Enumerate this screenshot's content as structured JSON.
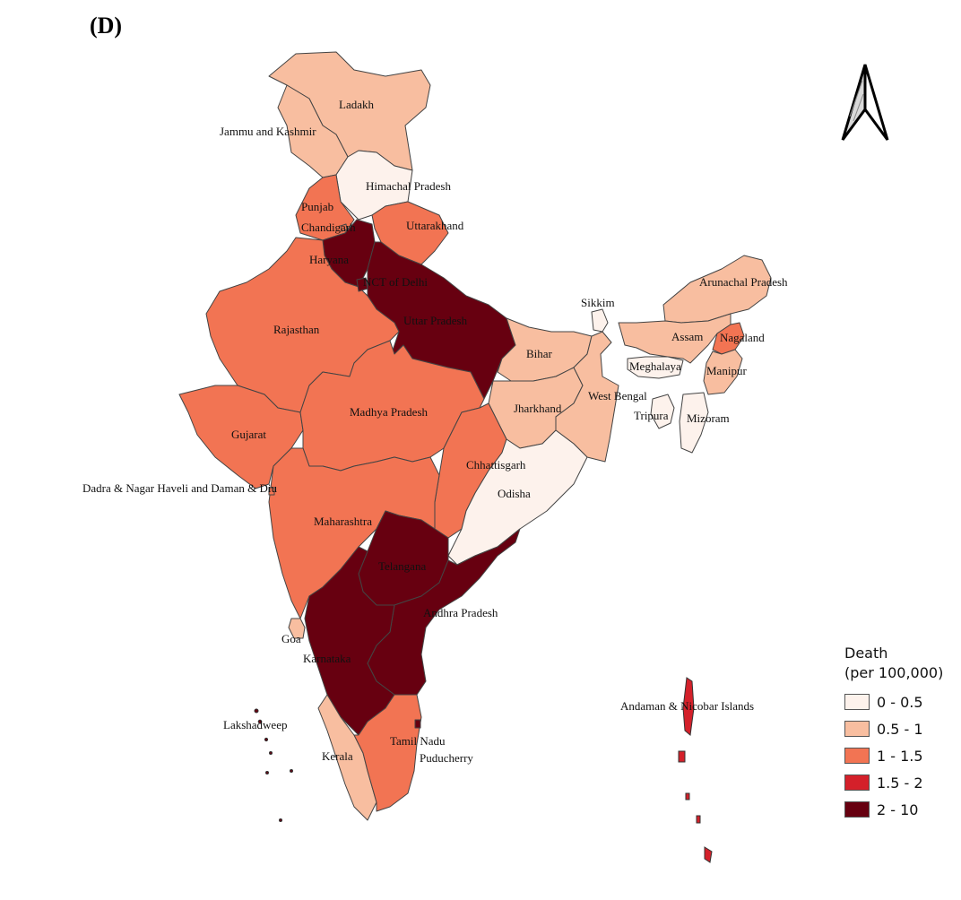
{
  "panel_label": "(D)",
  "colors": {
    "c0": "#fdf2ec",
    "c1": "#f8bea0",
    "c2": "#f27453",
    "c3": "#d4202a",
    "c4": "#670010",
    "border": "#444444"
  },
  "legend": {
    "title_line1": "Death",
    "title_line2": "(per 100,000)",
    "classes": [
      {
        "label": "0 - 0.5",
        "color": "#fdf2ec"
      },
      {
        "label": "0.5 - 1",
        "color": "#f8bea0"
      },
      {
        "label": "1 - 1.5",
        "color": "#f27453"
      },
      {
        "label": "1.5 - 2",
        "color": "#d4202a"
      },
      {
        "label": "2 - 10",
        "color": "#670010"
      }
    ]
  },
  "regions": {
    "ladakh": {
      "name": "Ladakh",
      "class": "0.5 - 1"
    },
    "jammu_kashmir": {
      "name": "Jammu and Kashmir",
      "class": "0.5 - 1"
    },
    "himachal": {
      "name": "Himachal Pradesh",
      "class": "0 - 0.5"
    },
    "punjab": {
      "name": "Punjab",
      "class": "1 - 1.5"
    },
    "chandigarh": {
      "name": "Chandigarh",
      "class": "1 - 1.5"
    },
    "uttarakhand": {
      "name": "Uttarakhand",
      "class": "1 - 1.5"
    },
    "haryana": {
      "name": "Haryana",
      "class": "2 - 10"
    },
    "delhi": {
      "name": "NCT of Delhi",
      "class": "2 - 10"
    },
    "uttar_pradesh": {
      "name": "Uttar Pradesh",
      "class": "2 - 10"
    },
    "rajasthan": {
      "name": "Rajasthan",
      "class": "1 - 1.5"
    },
    "gujarat": {
      "name": "Gujarat",
      "class": "1 - 1.5"
    },
    "dnh_dd": {
      "name": "Dadra & Nagar Haveli and Daman & Diu",
      "class": "1 - 1.5"
    },
    "madhya_pradesh": {
      "name": "Madhya Pradesh",
      "class": "1 - 1.5"
    },
    "bihar": {
      "name": "Bihar",
      "class": "0.5 - 1"
    },
    "jharkhand": {
      "name": "Jharkhand",
      "class": "0.5 - 1"
    },
    "west_bengal": {
      "name": "West Bengal",
      "class": "0.5 - 1"
    },
    "chhattisgarh": {
      "name": "Chhattisgarh",
      "class": "1 - 1.5"
    },
    "odisha": {
      "name": "Odisha",
      "class": "0 - 0.5"
    },
    "maharashtra": {
      "name": "Maharashtra",
      "class": "1 - 1.5"
    },
    "telangana": {
      "name": "Telangana",
      "class": "2 - 10"
    },
    "andhra_pradesh": {
      "name": "Andhra Pradesh",
      "class": "2 - 10"
    },
    "goa": {
      "name": "Goa",
      "class": "0.5 - 1"
    },
    "karnataka": {
      "name": "Karnataka",
      "class": "2 - 10"
    },
    "kerala": {
      "name": "Kerala",
      "class": "0.5 - 1"
    },
    "tamil_nadu": {
      "name": "Tamil Nadu",
      "class": "1 - 1.5"
    },
    "puducherry": {
      "name": "Puducherry",
      "class": "2 - 10"
    },
    "lakshadweep": {
      "name": "Lakshadweep",
      "class": "2 - 10"
    },
    "sikkim": {
      "name": "Sikkim",
      "class": "0 - 0.5"
    },
    "arunachal": {
      "name": "Arunachal Pradesh",
      "class": "0.5 - 1"
    },
    "assam": {
      "name": "Assam",
      "class": "0.5 - 1"
    },
    "nagaland": {
      "name": "Nagaland",
      "class": "1 - 1.5"
    },
    "meghalaya": {
      "name": "Meghalaya",
      "class": "0 - 0.5"
    },
    "manipur": {
      "name": "Manipur",
      "class": "0.5 - 1"
    },
    "tripura": {
      "name": "Tripura",
      "class": "0 - 0.5"
    },
    "mizoram": {
      "name": "Mizoram",
      "class": "0 - 0.5"
    },
    "andaman": {
      "name": "Andaman & Nicobar Islands",
      "class": "1.5 - 2"
    }
  }
}
